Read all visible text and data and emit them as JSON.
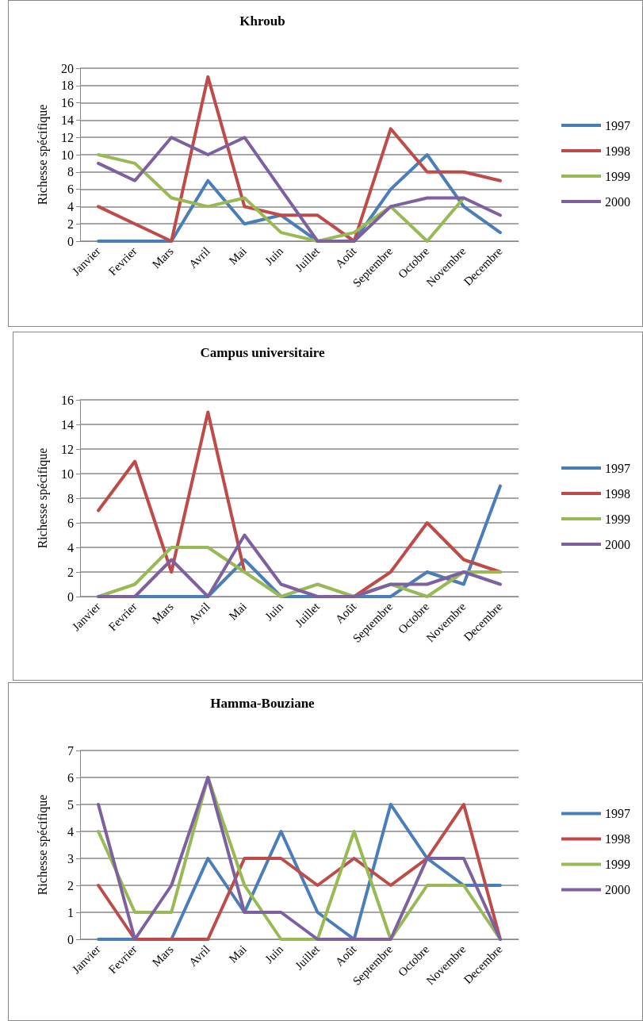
{
  "chart_data": [
    {
      "type": "line",
      "title": "Khroub",
      "ylabel": "Richesse spécifique",
      "categories": [
        "Janvier",
        "Fevrier",
        "Mars",
        "Avril",
        "Mai",
        "Juin",
        "Juillet",
        "Août",
        "Septembre",
        "Octobre",
        "Novembre",
        "Decembre"
      ],
      "series": [
        {
          "name": "1997",
          "color": "#4a7ebb",
          "values": [
            0,
            0,
            0,
            7,
            2,
            3,
            0,
            0,
            6,
            10,
            4,
            1
          ]
        },
        {
          "name": "1998",
          "color": "#be4b48",
          "values": [
            4,
            2,
            0,
            19,
            4,
            3,
            3,
            0,
            13,
            8,
            8,
            7
          ]
        },
        {
          "name": "1999",
          "color": "#98b954",
          "values": [
            10,
            9,
            5,
            4,
            5,
            1,
            0,
            1,
            4,
            0,
            5,
            null
          ]
        },
        {
          "name": "2000",
          "color": "#7d60a0",
          "values": [
            9,
            7,
            12,
            10,
            12,
            6,
            0,
            0,
            4,
            5,
            5,
            3
          ]
        }
      ],
      "ylim": [
        0,
        20
      ],
      "yticks": [
        0,
        2,
        4,
        6,
        8,
        10,
        12,
        14,
        16,
        18,
        20
      ],
      "grid": "y",
      "legend": "right",
      "marker": "none"
    },
    {
      "type": "line",
      "title": "Campus universitaire",
      "ylabel": "Richesse spécifique",
      "categories": [
        "Janvier",
        "Fevrier",
        "Mars",
        "Avril",
        "Mai",
        "Juin",
        "Juillet",
        "Août",
        "Septembre",
        "Octobre",
        "Novembre",
        "Decembre"
      ],
      "series": [
        {
          "name": "1997",
          "color": "#4a7ebb",
          "values": [
            0,
            0,
            0,
            0,
            3,
            0,
            0,
            0,
            0,
            2,
            1,
            9
          ]
        },
        {
          "name": "1998",
          "color": "#be4b48",
          "values": [
            7,
            11,
            2,
            15,
            2,
            null,
            null,
            0,
            2,
            6,
            3,
            2
          ]
        },
        {
          "name": "1999",
          "color": "#98b954",
          "values": [
            0,
            1,
            4,
            4,
            2,
            0,
            1,
            0,
            1,
            0,
            2,
            2
          ]
        },
        {
          "name": "2000",
          "color": "#7d60a0",
          "values": [
            0,
            0,
            3,
            0,
            5,
            1,
            0,
            0,
            1,
            1,
            2,
            1
          ]
        }
      ],
      "ylim": [
        0,
        16
      ],
      "yticks": [
        0,
        2,
        4,
        6,
        8,
        10,
        12,
        14,
        16
      ],
      "grid": "y",
      "legend": "right",
      "marker": "none"
    },
    {
      "type": "line",
      "title": "Hamma-Bouziane",
      "ylabel": "Richesse spécifique",
      "categories": [
        "Janvier",
        "Fevrier",
        "Mars",
        "Avril",
        "Mai",
        "Juin",
        "Juillet",
        "Août",
        "Septembre",
        "Octobre",
        "Novembre",
        "Decembre"
      ],
      "series": [
        {
          "name": "1997",
          "color": "#4a7ebb",
          "values": [
            0,
            0,
            0,
            3,
            1,
            4,
            1,
            0,
            5,
            3,
            2,
            2
          ]
        },
        {
          "name": "1998",
          "color": "#be4b48",
          "values": [
            2,
            0,
            0,
            0,
            3,
            3,
            2,
            3,
            2,
            3,
            5,
            0
          ]
        },
        {
          "name": "1999",
          "color": "#98b954",
          "values": [
            4,
            1,
            1,
            6,
            2,
            0,
            0,
            4,
            0,
            2,
            2,
            0
          ]
        },
        {
          "name": "2000",
          "color": "#7d60a0",
          "values": [
            5,
            0,
            2,
            6,
            1,
            1,
            0,
            0,
            0,
            3,
            3,
            0
          ]
        }
      ],
      "ylim": [
        0,
        7
      ],
      "yticks": [
        0,
        1,
        2,
        3,
        4,
        5,
        6,
        7
      ],
      "grid": "y",
      "legend": "right",
      "marker": "none"
    }
  ]
}
